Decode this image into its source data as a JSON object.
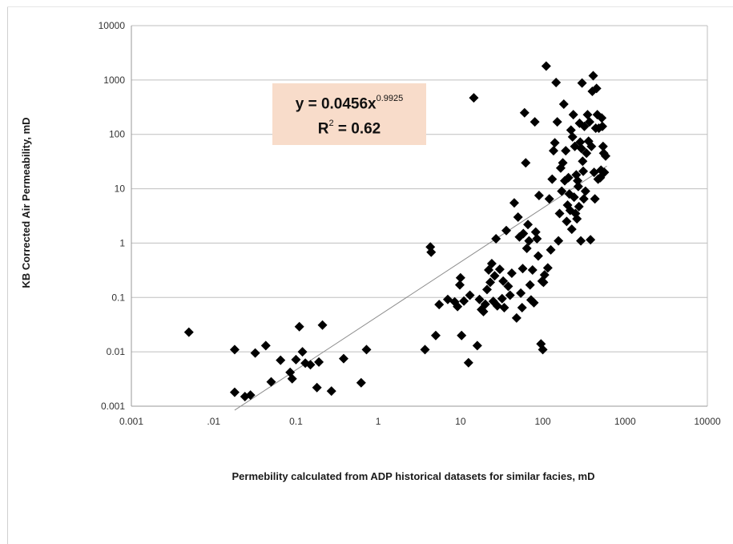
{
  "chart_data": {
    "type": "scatter",
    "xlabel": "Permebility calculated from ADP historical datasets for similar facies, mD",
    "ylabel": "KB Corrected Air Permeability, mD",
    "x_scale": "log",
    "y_scale": "log",
    "xlim": [
      0.001,
      10000
    ],
    "ylim": [
      0.001,
      10000
    ],
    "x_tick_labels": [
      "0.001",
      ".01",
      "0.1",
      "1",
      "10",
      "100",
      "1000",
      "10000"
    ],
    "y_tick_labels": [
      "0.001",
      "0.01",
      "0.1",
      "1",
      "10",
      "100",
      "1000",
      "10000"
    ],
    "x_tick_values": [
      0.001,
      0.01,
      0.1,
      1,
      10,
      100,
      1000,
      10000
    ],
    "y_tick_values": [
      0.001,
      0.01,
      0.1,
      1,
      10,
      100,
      1000,
      10000
    ],
    "grid": "horizontal",
    "marker": "diamond",
    "marker_color": "#000000",
    "trendline_color": "#8c8c8c",
    "trendline": {
      "type": "power",
      "coefficient": 0.0456,
      "exponent": 0.9925,
      "x_range": [
        0.018,
        600
      ],
      "equation_label": {
        "prefix": "y = 0.0456x",
        "exponent_text": "0.9925"
      },
      "r2_label": {
        "prefix": "R",
        "sup": "2",
        "suffix": " = 0.62"
      }
    },
    "points": [
      [
        0.005,
        0.023
      ],
      [
        0.018,
        0.0018
      ],
      [
        0.018,
        0.011
      ],
      [
        0.024,
        0.0015
      ],
      [
        0.028,
        0.0016
      ],
      [
        0.032,
        0.0095
      ],
      [
        0.043,
        0.013
      ],
      [
        0.05,
        0.0028
      ],
      [
        0.065,
        0.007
      ],
      [
        0.085,
        0.0042
      ],
      [
        0.09,
        0.0032
      ],
      [
        0.1,
        0.0072
      ],
      [
        0.11,
        0.029
      ],
      [
        0.12,
        0.01
      ],
      [
        0.13,
        0.0062
      ],
      [
        0.15,
        0.0058
      ],
      [
        0.18,
        0.0022
      ],
      [
        0.19,
        0.0065
      ],
      [
        0.21,
        0.031
      ],
      [
        0.27,
        0.0019
      ],
      [
        0.38,
        0.0075
      ],
      [
        0.62,
        0.0027
      ],
      [
        0.72,
        0.011
      ],
      [
        3.7,
        0.011
      ],
      [
        4.3,
        0.85
      ],
      [
        4.4,
        0.68
      ],
      [
        5.0,
        0.02
      ],
      [
        5.5,
        0.074
      ],
      [
        7.0,
        0.092
      ],
      [
        8.5,
        0.083
      ],
      [
        9.2,
        0.068
      ],
      [
        9.8,
        0.17
      ],
      [
        10.0,
        0.23
      ],
      [
        10.3,
        0.02
      ],
      [
        11.0,
        0.086
      ],
      [
        12.5,
        0.0063
      ],
      [
        13.0,
        0.11
      ],
      [
        14.5,
        470
      ],
      [
        16.0,
        0.013
      ],
      [
        17,
        0.092
      ],
      [
        18,
        0.06
      ],
      [
        19,
        0.055
      ],
      [
        20,
        0.075
      ],
      [
        21,
        0.14
      ],
      [
        22,
        0.32
      ],
      [
        23,
        0.19
      ],
      [
        24,
        0.42
      ],
      [
        25,
        0.085
      ],
      [
        26,
        0.25
      ],
      [
        27,
        1.2
      ],
      [
        28,
        0.07
      ],
      [
        30,
        0.33
      ],
      [
        32,
        0.095
      ],
      [
        33,
        0.2
      ],
      [
        34,
        0.065
      ],
      [
        36,
        1.7
      ],
      [
        38,
        0.16
      ],
      [
        40,
        0.11
      ],
      [
        42,
        0.28
      ],
      [
        45,
        5.5
      ],
      [
        48,
        0.042
      ],
      [
        50,
        3.0
      ],
      [
        52,
        1.3
      ],
      [
        54,
        0.12
      ],
      [
        56,
        0.065
      ],
      [
        57,
        0.34
      ],
      [
        58,
        1.5
      ],
      [
        60,
        250
      ],
      [
        62,
        30
      ],
      [
        64,
        0.8
      ],
      [
        66,
        2.2
      ],
      [
        68,
        1.1
      ],
      [
        70,
        0.17
      ],
      [
        72,
        0.09
      ],
      [
        75,
        0.32
      ],
      [
        78,
        0.08
      ],
      [
        80,
        170
      ],
      [
        82,
        1.6
      ],
      [
        85,
        1.2
      ],
      [
        88,
        0.58
      ],
      [
        90,
        7.5
      ],
      [
        95,
        0.014
      ],
      [
        98,
        0.2
      ],
      [
        100,
        0.011
      ],
      [
        102,
        0.19
      ],
      [
        105,
        0.26
      ],
      [
        110,
        1800
      ],
      [
        115,
        0.35
      ],
      [
        120,
        6.5
      ],
      [
        125,
        0.75
      ],
      [
        130,
        15
      ],
      [
        135,
        50
      ],
      [
        140,
        70
      ],
      [
        145,
        900
      ],
      [
        150,
        170
      ],
      [
        155,
        1.1
      ],
      [
        160,
        3.5
      ],
      [
        165,
        24
      ],
      [
        170,
        9
      ],
      [
        175,
        30
      ],
      [
        180,
        360
      ],
      [
        185,
        14
      ],
      [
        190,
        50
      ],
      [
        195,
        2.5
      ],
      [
        200,
        5
      ],
      [
        205,
        16
      ],
      [
        210,
        8
      ],
      [
        215,
        4
      ],
      [
        220,
        120
      ],
      [
        225,
        1.8
      ],
      [
        230,
        90
      ],
      [
        235,
        230
      ],
      [
        240,
        7
      ],
      [
        245,
        60
      ],
      [
        250,
        3.5
      ],
      [
        255,
        18
      ],
      [
        260,
        2.8
      ],
      [
        265,
        14
      ],
      [
        270,
        11
      ],
      [
        275,
        4.7
      ],
      [
        280,
        160
      ],
      [
        285,
        72
      ],
      [
        290,
        1.1
      ],
      [
        295,
        55
      ],
      [
        300,
        880
      ],
      [
        305,
        32
      ],
      [
        310,
        21
      ],
      [
        315,
        6.5
      ],
      [
        320,
        140
      ],
      [
        330,
        9
      ],
      [
        340,
        45
      ],
      [
        350,
        230
      ],
      [
        360,
        75
      ],
      [
        370,
        170
      ],
      [
        380,
        1.15
      ],
      [
        390,
        60
      ],
      [
        400,
        620
      ],
      [
        410,
        1200
      ],
      [
        420,
        20
      ],
      [
        430,
        6.5
      ],
      [
        440,
        130
      ],
      [
        450,
        700
      ],
      [
        460,
        230
      ],
      [
        470,
        15
      ],
      [
        480,
        130
      ],
      [
        500,
        16
      ],
      [
        510,
        22
      ],
      [
        520,
        200
      ],
      [
        530,
        140
      ],
      [
        540,
        60
      ],
      [
        550,
        45
      ],
      [
        560,
        20
      ],
      [
        580,
        40
      ]
    ]
  }
}
